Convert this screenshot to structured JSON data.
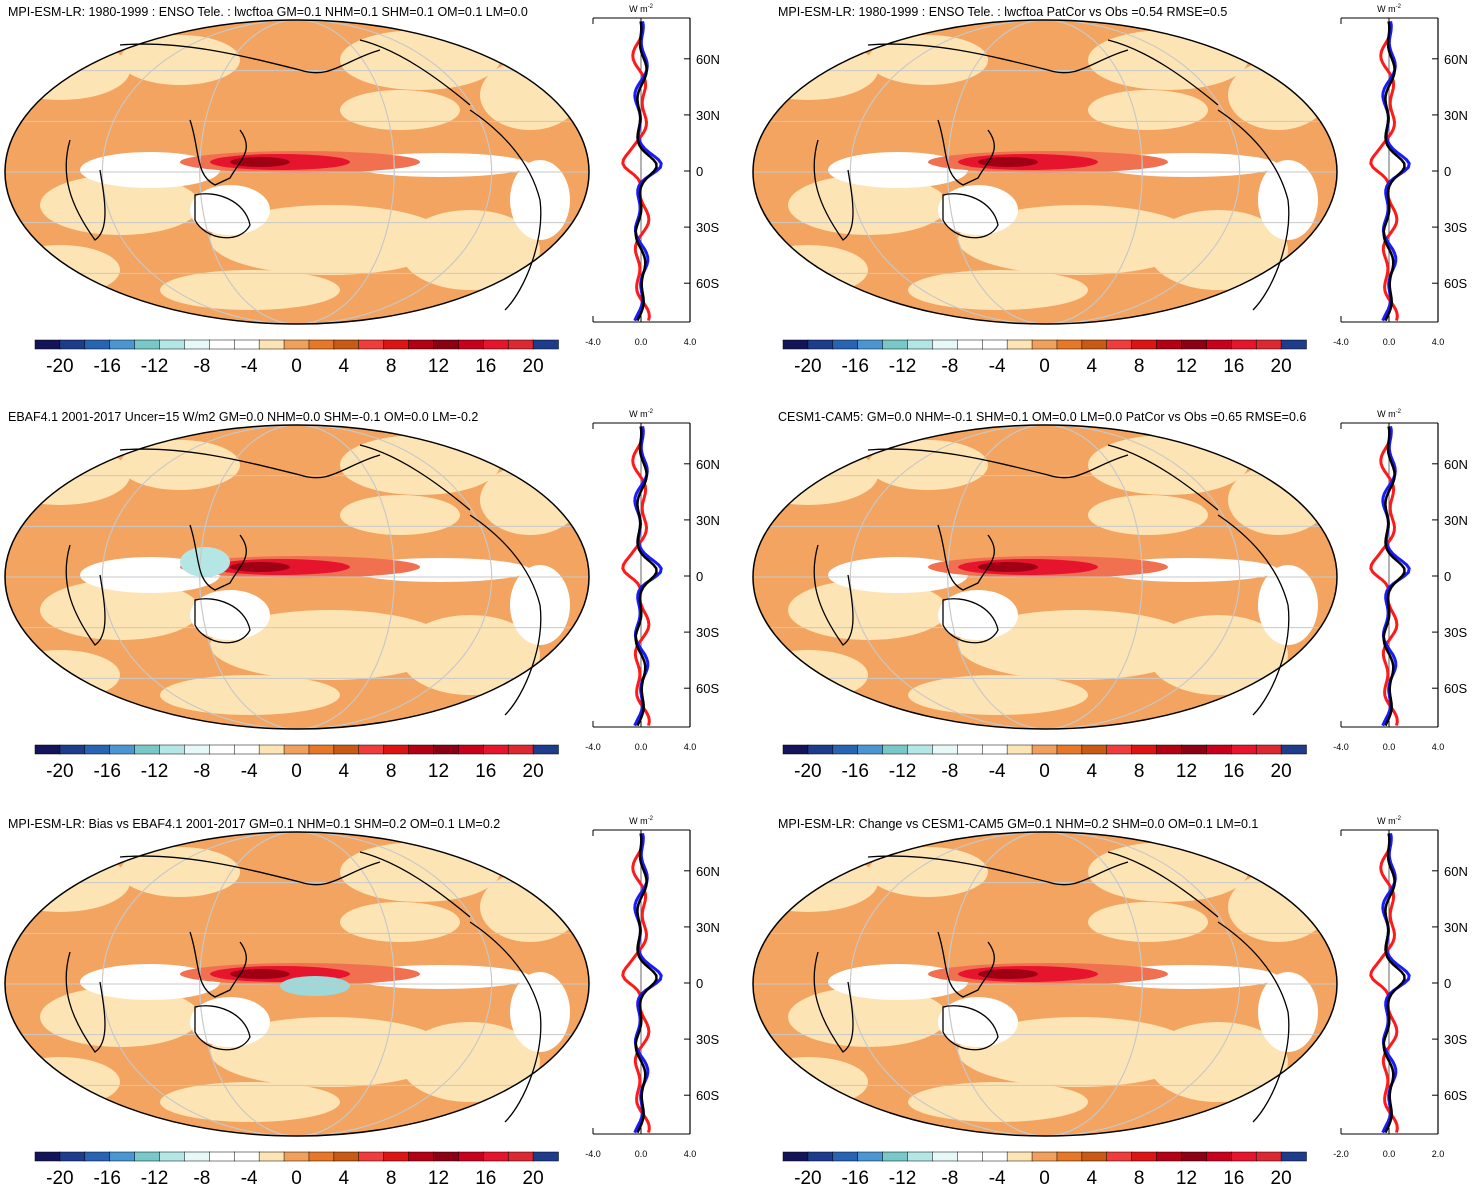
{
  "colorbar": {
    "labels": [
      "-20",
      "-16",
      "-12",
      "-8",
      "-4",
      "0",
      "4",
      "8",
      "12",
      "16",
      "20"
    ],
    "colors": [
      "#14145a",
      "#1e3c8c",
      "#2864b4",
      "#4a96d2",
      "#78c8c8",
      "#b4e6e6",
      "#e6f8f8",
      "#ffffff",
      "#ffffff",
      "#fde4b4",
      "#f0a05a",
      "#e67828",
      "#c85a14",
      "#f03c3c",
      "#dc1414",
      "#b40014",
      "#8c0014",
      "#c8001e",
      "#e6142d",
      "#dc2832",
      "#1e3c8c"
    ]
  },
  "zonal_axis": {
    "unit_label": "W m",
    "lat_labels": [
      "60N",
      "30N",
      "0",
      "30S",
      "60S"
    ]
  },
  "panels": [
    {
      "title": "MPI-ESM-LR: 1980-1999 : ENSO Tele. : lwcftoa GM=0.1 NHM=0.1 SHM=0.1 OM=0.1 LM=0.0",
      "x_ticks": [
        "-4.0",
        "0.0",
        "4.0"
      ]
    },
    {
      "title": "MPI-ESM-LR: 1980-1999 : ENSO Tele. : lwcftoa PatCor vs Obs =0.54 RMSE=0.5",
      "x_ticks": [
        "-4.0",
        "0.0",
        "4.0"
      ]
    },
    {
      "title": "EBAF4.1 2001-2017 Uncer=15 W/m2 GM=0.0 NHM=0.0 SHM=-0.1 OM=0.0 LM=-0.2",
      "x_ticks": [
        "-4.0",
        "0.0",
        "4.0"
      ]
    },
    {
      "title": "CESM1-CAM5: GM=0.0 NHM=-0.1 SHM=0.1 OM=0.0 LM=0.0 PatCor vs Obs =0.65 RMSE=0.6",
      "x_ticks": [
        "-4.0",
        "0.0",
        "4.0"
      ]
    },
    {
      "title": "MPI-ESM-LR: Bias vs EBAF4.1 2001-2017 GM=0.1 NHM=0.1 SHM=0.2 OM=0.1 LM=0.2",
      "x_ticks": [
        "-4.0",
        "0.0",
        "4.0"
      ]
    },
    {
      "title": "MPI-ESM-LR: Change vs CESM1-CAM5 GM=0.1 NHM=0.2 SHM=0.0 OM=0.1 LM=0.1",
      "x_ticks": [
        "-2.0",
        "0.0",
        "2.0"
      ]
    }
  ],
  "style": {
    "background_orange": "#f2a460",
    "light_tan": "#fde4b4",
    "equator_red": "#e6142d",
    "dark_red": "#a00014",
    "blue_curve": "#1a1aff",
    "red_curve": "#ff1a1a",
    "black_curve": "#000000",
    "graticule": "#c8c8c8"
  }
}
